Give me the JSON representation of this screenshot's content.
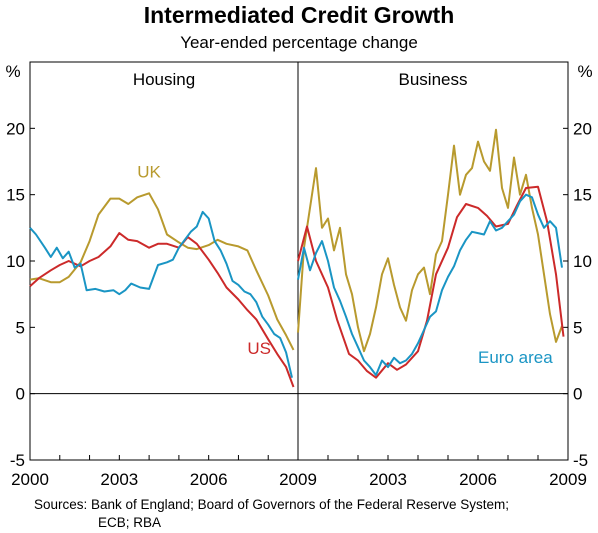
{
  "title": "Intermediated Credit Growth",
  "subtitle": "Year-ended percentage change",
  "source_line1": "Sources: Bank of England; Board of Governors of the Federal Reserve System;",
  "source_line2": "ECB; RBA",
  "chart_data": [
    {
      "type": "line",
      "panel_title": "Housing",
      "ylabel_left": "%",
      "ylim": [
        -5,
        25
      ],
      "yticks": [
        -5,
        0,
        5,
        10,
        15,
        20
      ],
      "xlim": [
        2000,
        2009
      ],
      "xticks": [
        "2000",
        "2003",
        "2006",
        "2009"
      ],
      "series": [
        {
          "name": "UK",
          "color": "#b89a2e",
          "label_pos": [
            2003.6,
            16.3
          ],
          "x": [
            2000.0,
            2000.3,
            2000.7,
            2001.0,
            2001.3,
            2001.7,
            2002.0,
            2002.3,
            2002.7,
            2003.0,
            2003.3,
            2003.6,
            2004.0,
            2004.3,
            2004.6,
            2005.0,
            2005.3,
            2005.6,
            2006.0,
            2006.3,
            2006.6,
            2007.0,
            2007.3,
            2007.6,
            2008.0,
            2008.3,
            2008.6,
            2008.85
          ],
          "y": [
            8.6,
            8.7,
            8.4,
            8.4,
            8.8,
            9.9,
            11.5,
            13.5,
            14.7,
            14.7,
            14.3,
            14.8,
            15.1,
            13.9,
            12.0,
            11.4,
            11.0,
            10.9,
            11.2,
            11.6,
            11.3,
            11.1,
            10.8,
            9.3,
            7.4,
            5.6,
            4.4,
            3.3
          ]
        },
        {
          "name": "US",
          "color": "#cc2a2a",
          "label_pos": [
            2007.3,
            3.0
          ],
          "x": [
            2000.0,
            2000.3,
            2000.7,
            2001.0,
            2001.3,
            2001.7,
            2002.0,
            2002.3,
            2002.7,
            2003.0,
            2003.3,
            2003.6,
            2004.0,
            2004.3,
            2004.6,
            2005.0,
            2005.3,
            2005.6,
            2006.0,
            2006.3,
            2006.6,
            2007.0,
            2007.3,
            2007.6,
            2008.0,
            2008.3,
            2008.6,
            2008.85
          ],
          "y": [
            8.1,
            8.7,
            9.3,
            9.7,
            10.0,
            9.6,
            10.0,
            10.3,
            11.1,
            12.1,
            11.6,
            11.5,
            11.0,
            11.3,
            11.3,
            11.0,
            11.8,
            11.3,
            10.1,
            9.1,
            8.0,
            7.1,
            6.3,
            5.6,
            4.1,
            3.0,
            2.0,
            0.5
          ]
        },
        {
          "name": "Euro area",
          "color": "#1a95c4",
          "x": [
            2000.0,
            2000.2,
            2000.5,
            2000.7,
            2000.9,
            2001.1,
            2001.3,
            2001.5,
            2001.7,
            2001.9,
            2002.2,
            2002.5,
            2002.8,
            2003.0,
            2003.2,
            2003.4,
            2003.7,
            2004.0,
            2004.3,
            2004.6,
            2004.8,
            2005.0,
            2005.2,
            2005.4,
            2005.6,
            2005.8,
            2006.0,
            2006.2,
            2006.4,
            2006.6,
            2006.8,
            2007.0,
            2007.2,
            2007.4,
            2007.6,
            2007.8,
            2008.0,
            2008.2,
            2008.4,
            2008.6,
            2008.8
          ],
          "y": [
            12.5,
            12.0,
            11.0,
            10.3,
            11.0,
            10.2,
            10.7,
            9.5,
            9.8,
            7.8,
            7.9,
            7.7,
            7.8,
            7.5,
            7.8,
            8.3,
            8.0,
            7.9,
            9.7,
            9.9,
            10.1,
            11.0,
            11.6,
            12.2,
            12.6,
            13.7,
            13.2,
            11.5,
            10.8,
            9.8,
            8.5,
            8.2,
            7.7,
            7.5,
            6.9,
            5.8,
            5.2,
            4.5,
            4.2,
            3.1,
            1.2
          ]
        }
      ]
    },
    {
      "type": "line",
      "panel_title": "Business",
      "ylabel_right": "%",
      "ylim": [
        -5,
        25
      ],
      "yticks": [
        -5,
        0,
        5,
        10,
        15,
        20
      ],
      "xlim": [
        2000,
        2009
      ],
      "xticks": [
        "2003",
        "2006",
        "2009"
      ],
      "series": [
        {
          "name": "UK",
          "color": "#b89a2e",
          "x": [
            2000.0,
            2000.2,
            2000.4,
            2000.6,
            2000.8,
            2001.0,
            2001.2,
            2001.4,
            2001.6,
            2001.8,
            2002.0,
            2002.2,
            2002.4,
            2002.6,
            2002.8,
            2003.0,
            2003.2,
            2003.4,
            2003.6,
            2003.8,
            2004.0,
            2004.2,
            2004.4,
            2004.6,
            2004.8,
            2005.0,
            2005.2,
            2005.4,
            2005.6,
            2005.8,
            2006.0,
            2006.2,
            2006.4,
            2006.6,
            2006.8,
            2007.0,
            2007.2,
            2007.4,
            2007.6,
            2007.8,
            2008.0,
            2008.2,
            2008.4,
            2008.6,
            2008.8
          ],
          "y": [
            4.6,
            11.0,
            14.0,
            17.0,
            12.5,
            13.2,
            10.8,
            12.5,
            9.0,
            7.5,
            5.0,
            3.2,
            4.5,
            6.5,
            9.0,
            10.2,
            8.2,
            6.5,
            5.5,
            7.8,
            9.0,
            9.5,
            7.5,
            10.5,
            11.5,
            15.0,
            18.7,
            15.0,
            16.5,
            17.0,
            19.0,
            17.5,
            16.8,
            19.9,
            15.5,
            14.0,
            17.8,
            15.0,
            16.5,
            14.0,
            12.0,
            9.0,
            6.0,
            3.9,
            5.1
          ]
        },
        {
          "name": "US",
          "color": "#cc2a2a",
          "x": [
            2000.0,
            2000.3,
            2000.6,
            2001.0,
            2001.3,
            2001.7,
            2002.0,
            2002.3,
            2002.6,
            2003.0,
            2003.3,
            2003.6,
            2004.0,
            2004.3,
            2004.6,
            2005.0,
            2005.3,
            2005.6,
            2006.0,
            2006.3,
            2006.6,
            2007.0,
            2007.3,
            2007.6,
            2008.0,
            2008.3,
            2008.6,
            2008.85
          ],
          "y": [
            10.0,
            12.6,
            10.0,
            8.0,
            5.6,
            3.0,
            2.5,
            1.7,
            1.2,
            2.3,
            1.8,
            2.2,
            3.2,
            5.5,
            9.0,
            11.0,
            13.3,
            14.3,
            14.0,
            13.4,
            12.6,
            12.8,
            14.2,
            15.5,
            15.6,
            13.0,
            9.0,
            4.3
          ]
        },
        {
          "name": "Euro area",
          "color": "#1a95c4",
          "label_pos": [
            2006.0,
            2.3
          ],
          "x": [
            2000.0,
            2000.2,
            2000.4,
            2000.6,
            2000.8,
            2001.0,
            2001.2,
            2001.4,
            2001.6,
            2001.8,
            2002.0,
            2002.2,
            2002.4,
            2002.6,
            2002.8,
            2003.0,
            2003.2,
            2003.4,
            2003.6,
            2003.8,
            2004.0,
            2004.2,
            2004.4,
            2004.6,
            2004.8,
            2005.0,
            2005.2,
            2005.4,
            2005.6,
            2005.8,
            2006.0,
            2006.2,
            2006.4,
            2006.6,
            2006.8,
            2007.0,
            2007.2,
            2007.4,
            2007.6,
            2007.8,
            2008.0,
            2008.2,
            2008.4,
            2008.6,
            2008.8
          ],
          "y": [
            8.6,
            11.0,
            9.3,
            10.6,
            11.5,
            10.0,
            8.0,
            7.0,
            5.8,
            4.5,
            3.5,
            2.5,
            2.0,
            1.4,
            2.5,
            2.0,
            2.7,
            2.3,
            2.5,
            3.0,
            3.8,
            4.8,
            5.8,
            6.2,
            7.8,
            8.8,
            9.6,
            10.8,
            11.6,
            12.2,
            12.1,
            12.0,
            13.0,
            12.3,
            12.5,
            13.0,
            13.5,
            14.5,
            15.0,
            14.8,
            13.5,
            12.5,
            13.0,
            12.5,
            9.5
          ]
        }
      ]
    }
  ]
}
